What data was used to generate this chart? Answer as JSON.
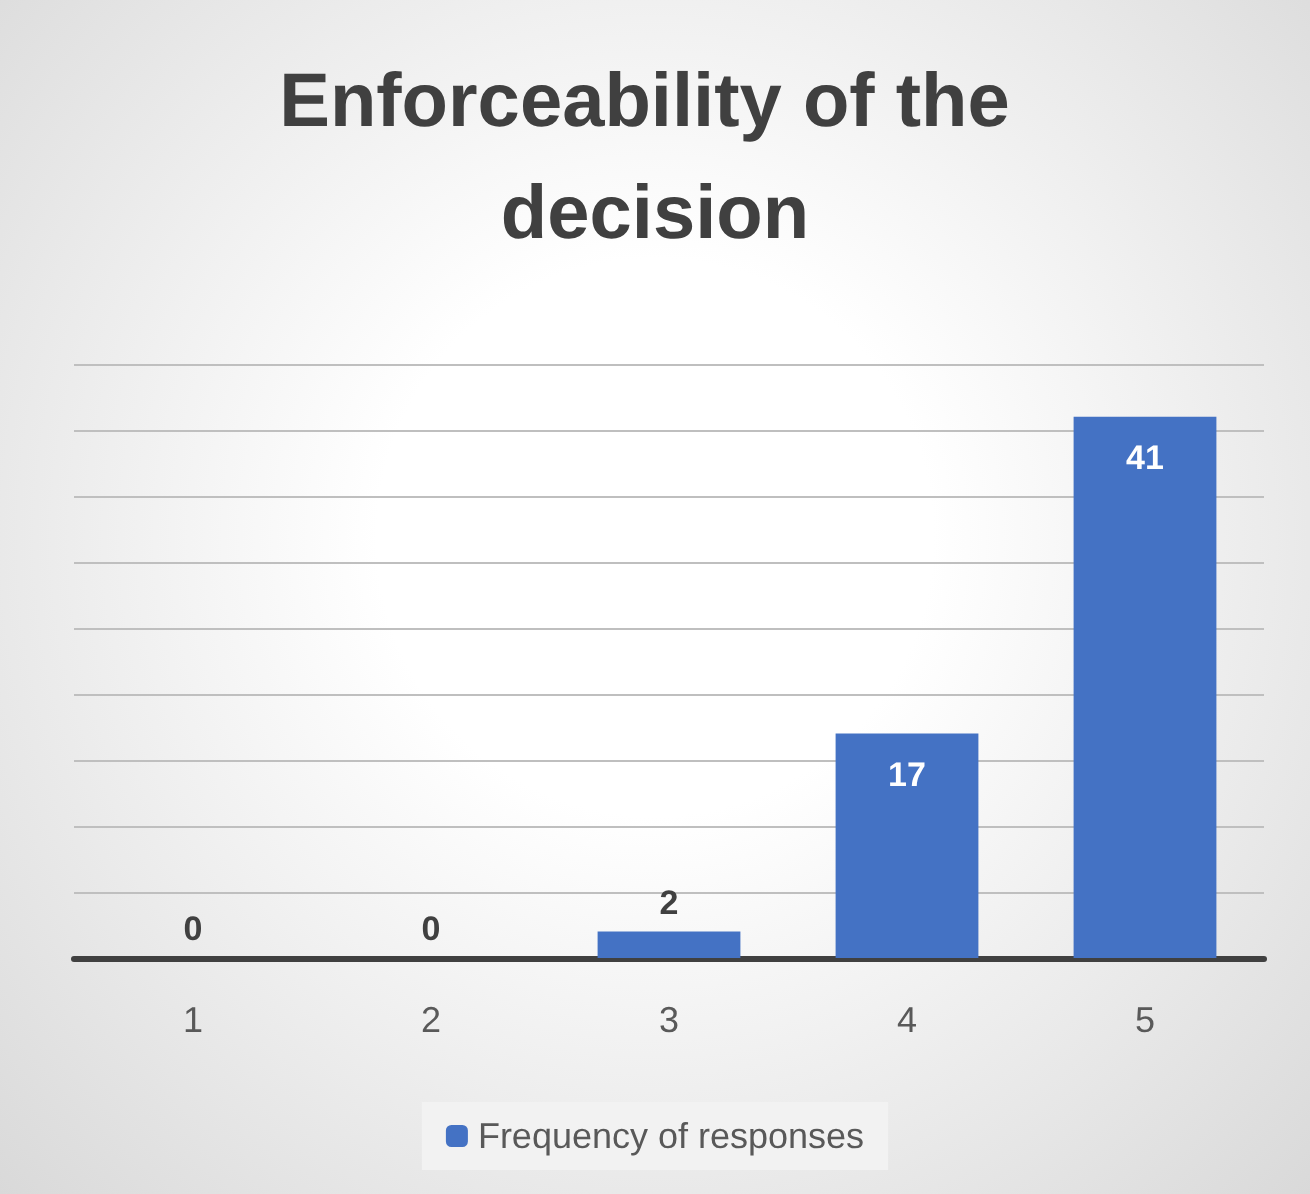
{
  "chart_data": {
    "type": "bar",
    "title": "Enforceability of the decision",
    "categories": [
      "1",
      "2",
      "3",
      "4",
      "5"
    ],
    "series": [
      {
        "name": "Frequency of responses",
        "color": "#4472c4",
        "values": [
          0,
          0,
          2,
          17,
          41
        ]
      }
    ],
    "ylim": [
      0,
      45
    ],
    "yticks": [
      0,
      5,
      10,
      15,
      20,
      25,
      30,
      35,
      40,
      45
    ],
    "tick_labels": "x",
    "grid": "y",
    "legend": "bottom",
    "data_labels": true
  }
}
